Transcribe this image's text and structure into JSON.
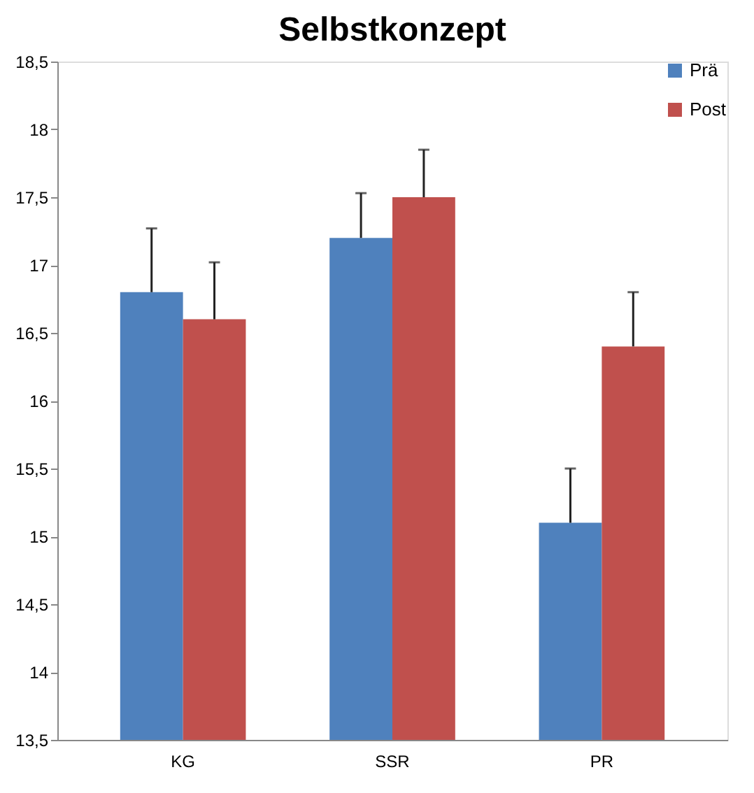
{
  "chart_data": {
    "type": "bar",
    "title": "Selbstkonzept",
    "categories": [
      "KG",
      "SSR",
      "PR"
    ],
    "series": [
      {
        "name": "Prä",
        "color": "#4f81bd",
        "values": [
          16.8,
          17.2,
          15.1
        ],
        "errors": [
          [
            16.8,
            17.27
          ],
          [
            17.2,
            17.53
          ],
          [
            15.1,
            15.5
          ]
        ]
      },
      {
        "name": "Post",
        "color": "#c0504d",
        "values": [
          16.6,
          17.5,
          16.4
        ],
        "errors": [
          [
            16.6,
            17.02
          ],
          [
            17.5,
            17.85
          ],
          [
            16.4,
            16.8
          ]
        ]
      }
    ],
    "ylim": [
      13.5,
      18.5
    ],
    "yticks": [
      {
        "value": 13.5,
        "label": "13,5"
      },
      14,
      {
        "value": 14.5,
        "label": "14,5"
      },
      15,
      {
        "value": 15.5,
        "label": "15,5"
      },
      16,
      {
        "value": 16.5,
        "label": "16,5"
      },
      17,
      {
        "value": 17.5,
        "label": "17,5"
      },
      18,
      {
        "value": 18.5,
        "label": "18,5"
      }
    ],
    "grid": false,
    "legend": "top right"
  }
}
